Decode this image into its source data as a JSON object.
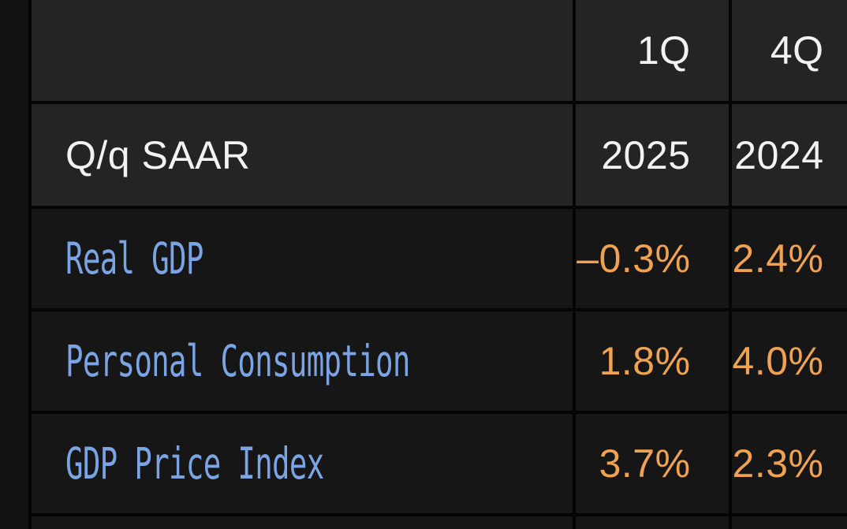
{
  "screen": {
    "bg": "#121212"
  },
  "table": {
    "corner_label": "Q/q SAAR",
    "quarter_header": {
      "col1": "1Q",
      "col2": "4Q"
    },
    "year_header": {
      "col1": "2025",
      "col2": "2024"
    },
    "rows": [
      {
        "label": "Real GDP",
        "values": [
          "–0.3%",
          "2.4%"
        ]
      },
      {
        "label": "Personal Consumption",
        "values": [
          "1.8%",
          "4.0%"
        ]
      },
      {
        "label": "GDP Price Index",
        "values": [
          "3.7%",
          "2.3%"
        ]
      }
    ],
    "colors": {
      "header_cell_bg": "#242424",
      "data_cell_bg": "#161616",
      "grid_border": "#050505",
      "header_text": "#f2f2f2",
      "label_blue": "#7ba4e4",
      "value_orange": "#efa352"
    }
  },
  "chart_data": {
    "type": "table",
    "title": "Q/q SAAR",
    "columns": [
      "",
      "1Q 2025",
      "4Q 2024"
    ],
    "rows": [
      [
        "Real GDP",
        "-0.3%",
        "2.4%"
      ],
      [
        "Personal Consumption",
        "1.8%",
        "4.0%"
      ],
      [
        "GDP Price Index",
        "3.7%",
        "2.3%"
      ]
    ]
  }
}
